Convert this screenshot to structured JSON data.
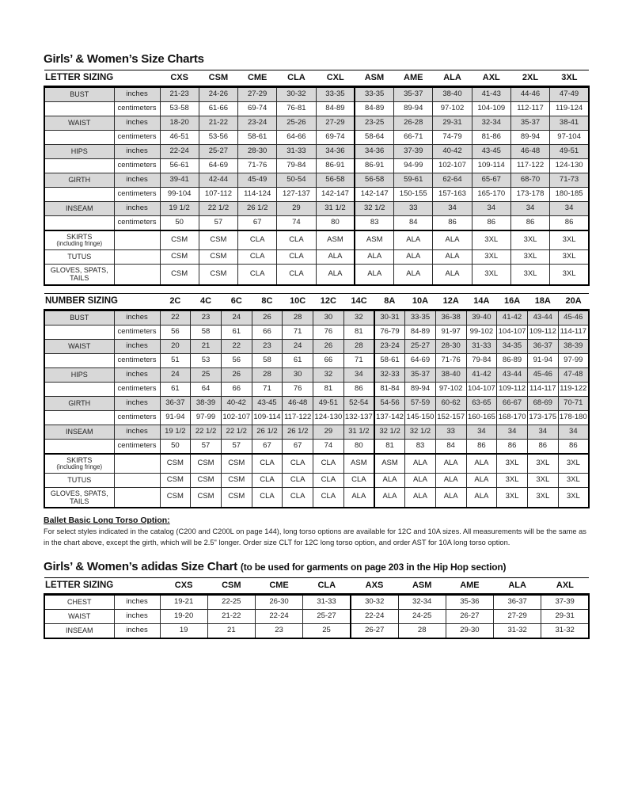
{
  "page": {
    "title_main": "Girls’ & Women’s Size Charts",
    "adidas_title_main": "Girls’ & Women’s adidas Size Chart",
    "adidas_title_note": "(to be used for garments on page 203 in the Hip Hop section)"
  },
  "letter_table": {
    "header_label": "LETTER SIZING",
    "columns": [
      "CXS",
      "CSM",
      "CME",
      "CLA",
      "CXL",
      "ASM",
      "AME",
      "ALA",
      "AXL",
      "2XL",
      "3XL"
    ],
    "divider_index": 5,
    "rows": [
      {
        "label": "BUST",
        "unit": "inches",
        "shaded": true,
        "values": [
          "21-23",
          "24-26",
          "27-29",
          "30-32",
          "33-35",
          "33-35",
          "35-37",
          "38-40",
          "41-43",
          "44-46",
          "47-49"
        ]
      },
      {
        "label": "",
        "unit": "centimeters",
        "shaded": false,
        "values": [
          "53-58",
          "61-66",
          "69-74",
          "76-81",
          "84-89",
          "84-89",
          "89-94",
          "97-102",
          "104-109",
          "112-117",
          "119-124"
        ]
      },
      {
        "label": "WAIST",
        "unit": "inches",
        "shaded": true,
        "values": [
          "18-20",
          "21-22",
          "23-24",
          "25-26",
          "27-29",
          "23-25",
          "26-28",
          "29-31",
          "32-34",
          "35-37",
          "38-41"
        ]
      },
      {
        "label": "",
        "unit": "centimeters",
        "shaded": false,
        "values": [
          "46-51",
          "53-56",
          "58-61",
          "64-66",
          "69-74",
          "58-64",
          "66-71",
          "74-79",
          "81-86",
          "89-94",
          "97-104"
        ]
      },
      {
        "label": "HIPS",
        "unit": "inches",
        "shaded": true,
        "values": [
          "22-24",
          "25-27",
          "28-30",
          "31-33",
          "34-36",
          "34-36",
          "37-39",
          "40-42",
          "43-45",
          "46-48",
          "49-51"
        ]
      },
      {
        "label": "",
        "unit": "centimeters",
        "shaded": false,
        "values": [
          "56-61",
          "64-69",
          "71-76",
          "79-84",
          "86-91",
          "86-91",
          "94-99",
          "102-107",
          "109-114",
          "117-122",
          "124-130"
        ]
      },
      {
        "label": "GIRTH",
        "unit": "inches",
        "shaded": true,
        "values": [
          "39-41",
          "42-44",
          "45-49",
          "50-54",
          "56-58",
          "56-58",
          "59-61",
          "62-64",
          "65-67",
          "68-70",
          "71-73"
        ]
      },
      {
        "label": "",
        "unit": "centimeters",
        "shaded": false,
        "values": [
          "99-104",
          "107-112",
          "114-124",
          "127-137",
          "142-147",
          "142-147",
          "150-155",
          "157-163",
          "165-170",
          "173-178",
          "180-185"
        ]
      },
      {
        "label": "INSEAM",
        "unit": "inches",
        "shaded": true,
        "values": [
          "19 1/2",
          "22 1/2",
          "26 1/2",
          "29",
          "31 1/2",
          "32 1/2",
          "33",
          "34",
          "34",
          "34",
          "34"
        ]
      },
      {
        "label": "",
        "unit": "centimeters",
        "shaded": false,
        "values": [
          "50",
          "57",
          "67",
          "74",
          "80",
          "83",
          "84",
          "86",
          "86",
          "86",
          "86"
        ]
      },
      {
        "label": "SKIRTS",
        "label_sub": "(including fringe)",
        "unit": "",
        "shaded": false,
        "section_start": true,
        "values": [
          "CSM",
          "CSM",
          "CLA",
          "CLA",
          "ASM",
          "ASM",
          "ALA",
          "ALA",
          "3XL",
          "3XL",
          "3XL"
        ]
      },
      {
        "label": "TUTUS",
        "unit": "",
        "shaded": false,
        "values": [
          "CSM",
          "CSM",
          "CLA",
          "CLA",
          "ALA",
          "ALA",
          "ALA",
          "ALA",
          "3XL",
          "3XL",
          "3XL"
        ]
      },
      {
        "label": "GLOVES, SPATS, TAILS",
        "unit": "",
        "shaded": false,
        "values": [
          "CSM",
          "CSM",
          "CLA",
          "CLA",
          "ALA",
          "ALA",
          "ALA",
          "ALA",
          "3XL",
          "3XL",
          "3XL"
        ]
      }
    ]
  },
  "number_table": {
    "header_label": "NUMBER SIZING",
    "columns": [
      "2C",
      "4C",
      "6C",
      "8C",
      "10C",
      "12C",
      "14C",
      "8A",
      "10A",
      "12A",
      "14A",
      "16A",
      "18A",
      "20A"
    ],
    "divider_index": 7,
    "rows": [
      {
        "label": "BUST",
        "unit": "inches",
        "shaded": true,
        "values": [
          "22",
          "23",
          "24",
          "26",
          "28",
          "30",
          "32",
          "30-31",
          "33-35",
          "36-38",
          "39-40",
          "41-42",
          "43-44",
          "45-46"
        ]
      },
      {
        "label": "",
        "unit": "centimeters",
        "shaded": false,
        "values": [
          "56",
          "58",
          "61",
          "66",
          "71",
          "76",
          "81",
          "76-79",
          "84-89",
          "91-97",
          "99-102",
          "104-107",
          "109-112",
          "114-117"
        ]
      },
      {
        "label": "WAIST",
        "unit": "inches",
        "shaded": true,
        "values": [
          "20",
          "21",
          "22",
          "23",
          "24",
          "26",
          "28",
          "23-24",
          "25-27",
          "28-30",
          "31-33",
          "34-35",
          "36-37",
          "38-39"
        ]
      },
      {
        "label": "",
        "unit": "centimeters",
        "shaded": false,
        "values": [
          "51",
          "53",
          "56",
          "58",
          "61",
          "66",
          "71",
          "58-61",
          "64-69",
          "71-76",
          "79-84",
          "86-89",
          "91-94",
          "97-99"
        ]
      },
      {
        "label": "HIPS",
        "unit": "inches",
        "shaded": true,
        "values": [
          "24",
          "25",
          "26",
          "28",
          "30",
          "32",
          "34",
          "32-33",
          "35-37",
          "38-40",
          "41-42",
          "43-44",
          "45-46",
          "47-48"
        ]
      },
      {
        "label": "",
        "unit": "centimeters",
        "shaded": false,
        "values": [
          "61",
          "64",
          "66",
          "71",
          "76",
          "81",
          "86",
          "81-84",
          "89-94",
          "97-102",
          "104-107",
          "109-112",
          "114-117",
          "119-122"
        ]
      },
      {
        "label": "GIRTH",
        "unit": "inches",
        "shaded": true,
        "values": [
          "36-37",
          "38-39",
          "40-42",
          "43-45",
          "46-48",
          "49-51",
          "52-54",
          "54-56",
          "57-59",
          "60-62",
          "63-65",
          "66-67",
          "68-69",
          "70-71"
        ]
      },
      {
        "label": "",
        "unit": "centimeters",
        "shaded": false,
        "values": [
          "91-94",
          "97-99",
          "102-107",
          "109-114",
          "117-122",
          "124-130",
          "132-137",
          "137-142",
          "145-150",
          "152-157",
          "160-165",
          "168-170",
          "173-175",
          "178-180"
        ]
      },
      {
        "label": "INSEAM",
        "unit": "inches",
        "shaded": true,
        "values": [
          "19 1/2",
          "22 1/2",
          "22 1/2",
          "26 1/2",
          "26 1/2",
          "29",
          "31 1/2",
          "32 1/2",
          "32 1/2",
          "33",
          "34",
          "34",
          "34",
          "34"
        ]
      },
      {
        "label": "",
        "unit": "centimeters",
        "shaded": false,
        "values": [
          "50",
          "57",
          "57",
          "67",
          "67",
          "74",
          "80",
          "81",
          "83",
          "84",
          "86",
          "86",
          "86",
          "86"
        ]
      },
      {
        "label": "SKIRTS",
        "label_sub": "(including fringe)",
        "unit": "",
        "shaded": false,
        "section_start": true,
        "values": [
          "CSM",
          "CSM",
          "CSM",
          "CLA",
          "CLA",
          "CLA",
          "ASM",
          "ASM",
          "ALA",
          "ALA",
          "ALA",
          "3XL",
          "3XL",
          "3XL"
        ]
      },
      {
        "label": "TUTUS",
        "unit": "",
        "shaded": false,
        "values": [
          "CSM",
          "CSM",
          "CSM",
          "CLA",
          "CLA",
          "CLA",
          "CLA",
          "ALA",
          "ALA",
          "ALA",
          "ALA",
          "3XL",
          "3XL",
          "3XL"
        ]
      },
      {
        "label": "GLOVES, SPATS, TAILS",
        "unit": "",
        "shaded": false,
        "values": [
          "CSM",
          "CSM",
          "CSM",
          "CLA",
          "CLA",
          "CLA",
          "ALA",
          "ALA",
          "ALA",
          "ALA",
          "ALA",
          "3XL",
          "3XL",
          "3XL"
        ]
      }
    ]
  },
  "ballet_note": {
    "heading": "Ballet Basic Long Torso Option:",
    "body": "For select styles indicated in the catalog (C200 and C200L on page 144), long torso options are available for 12C and 10A sizes. All measurements will be the same as in the chart above, except the girth, which will be 2.5\" longer. Order size CLT for 12C long torso option, and order AST for 10A long torso option."
  },
  "adidas_table": {
    "header_label": "LETTER SIZING",
    "columns": [
      "CXS",
      "CSM",
      "CME",
      "CLA",
      "AXS",
      "ASM",
      "AME",
      "ALA",
      "AXL"
    ],
    "divider_index": 4,
    "rows": [
      {
        "label": "CHEST",
        "unit": "inches",
        "shaded": false,
        "values": [
          "19-21",
          "22-25",
          "26-30",
          "31-33",
          "30-32",
          "32-34",
          "35-36",
          "36-37",
          "37-39"
        ]
      },
      {
        "label": "WAIST",
        "unit": "inches",
        "shaded": false,
        "values": [
          "19-20",
          "21-22",
          "22-24",
          "25-27",
          "22-24",
          "24-25",
          "26-27",
          "27-29",
          "29-31"
        ]
      },
      {
        "label": "INSEAM",
        "unit": "inches",
        "shaded": false,
        "values": [
          "19",
          "21",
          "23",
          "25",
          "26-27",
          "28",
          "29-30",
          "31-32",
          "31-32"
        ]
      }
    ]
  }
}
